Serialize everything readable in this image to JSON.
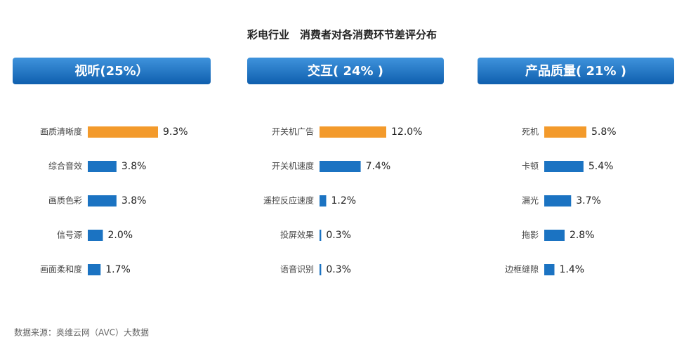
{
  "title": "彩电行业　消费者对各消费环节差评分布",
  "source": "数据来源：奥维云网（AVC）大数据",
  "chart_data": [
    {
      "type": "barh",
      "title": "视听(25%）",
      "categories": [
        "画质清晰度",
        "综合音效",
        "画质色彩",
        "信号源",
        "画面柔和度"
      ],
      "values": [
        9.3,
        3.8,
        3.8,
        2.0,
        1.7
      ],
      "value_labels": [
        "9.3%",
        "3.8%",
        "3.8%",
        "2.0%",
        "1.7%"
      ],
      "colors": [
        "#f39a2b",
        "#1b73c2",
        "#1b73c2",
        "#1b73c2",
        "#1b73c2"
      ]
    },
    {
      "type": "barh",
      "title": "交互( 24% )",
      "categories": [
        "开关机广告",
        "开关机速度",
        "遥控反应速度",
        "投屏效果",
        "语音识别"
      ],
      "values": [
        12.0,
        7.4,
        1.2,
        0.3,
        0.3
      ],
      "value_labels": [
        "12.0%",
        "7.4%",
        "1.2%",
        "0.3%",
        "0.3%"
      ],
      "colors": [
        "#f39a2b",
        "#1b73c2",
        "#1b73c2",
        "#1b73c2",
        "#1b73c2"
      ]
    },
    {
      "type": "barh",
      "title": "产品质量( 21% )",
      "categories": [
        "死机",
        "卡顿",
        "漏光",
        "拖影",
        "边框缝隙"
      ],
      "values": [
        5.8,
        5.4,
        3.7,
        2.8,
        1.4
      ],
      "value_labels": [
        "5.8%",
        "5.4%",
        "3.7%",
        "2.8%",
        "1.4%"
      ],
      "colors": [
        "#f39a2b",
        "#1b73c2",
        "#1b73c2",
        "#1b73c2",
        "#1b73c2"
      ]
    }
  ]
}
